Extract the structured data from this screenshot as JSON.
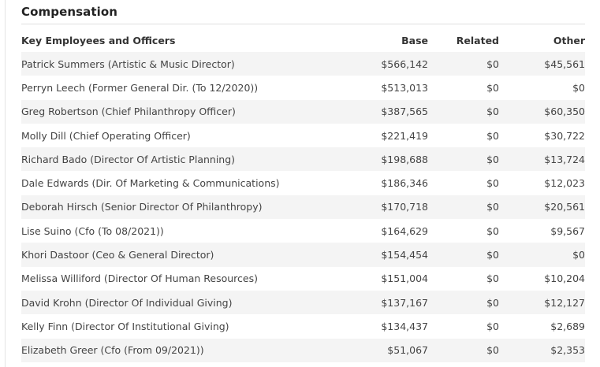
{
  "section": {
    "title": "Compensation"
  },
  "table": {
    "headers": {
      "name": "Key Employees and Officers",
      "base": "Base",
      "related": "Related",
      "other": "Other"
    },
    "rows": [
      {
        "name": "Patrick Summers (Artistic & Music Director)",
        "base": "$566,142",
        "related": "$0",
        "other": "$45,561"
      },
      {
        "name": "Perryn Leech (Former General Dir. (To 12/2020))",
        "base": "$513,013",
        "related": "$0",
        "other": "$0"
      },
      {
        "name": "Greg Robertson (Chief Philanthropy Officer)",
        "base": "$387,565",
        "related": "$0",
        "other": "$60,350"
      },
      {
        "name": "Molly Dill (Chief Operating Officer)",
        "base": "$221,419",
        "related": "$0",
        "other": "$30,722"
      },
      {
        "name": "Richard Bado (Director Of Artistic Planning)",
        "base": "$198,688",
        "related": "$0",
        "other": "$13,724"
      },
      {
        "name": "Dale Edwards (Dir. Of Marketing & Communications)",
        "base": "$186,346",
        "related": "$0",
        "other": "$12,023"
      },
      {
        "name": "Deborah Hirsch (Senior Director Of Philanthropy)",
        "base": "$170,718",
        "related": "$0",
        "other": "$20,561"
      },
      {
        "name": "Lise Suino (Cfo (To 08/2021))",
        "base": "$164,629",
        "related": "$0",
        "other": "$9,567"
      },
      {
        "name": "Khori Dastoor (Ceo & General Director)",
        "base": "$154,454",
        "related": "$0",
        "other": "$0"
      },
      {
        "name": "Melissa Williford (Director Of Human Resources)",
        "base": "$151,004",
        "related": "$0",
        "other": "$10,204"
      },
      {
        "name": "David Krohn (Director Of Individual Giving)",
        "base": "$137,167",
        "related": "$0",
        "other": "$12,127"
      },
      {
        "name": "Kelly Finn (Director Of Institutional Giving)",
        "base": "$134,437",
        "related": "$0",
        "other": "$2,689"
      },
      {
        "name": "Elizabeth Greer (Cfo (From 09/2021))",
        "base": "$51,067",
        "related": "$0",
        "other": "$2,353"
      }
    ]
  }
}
